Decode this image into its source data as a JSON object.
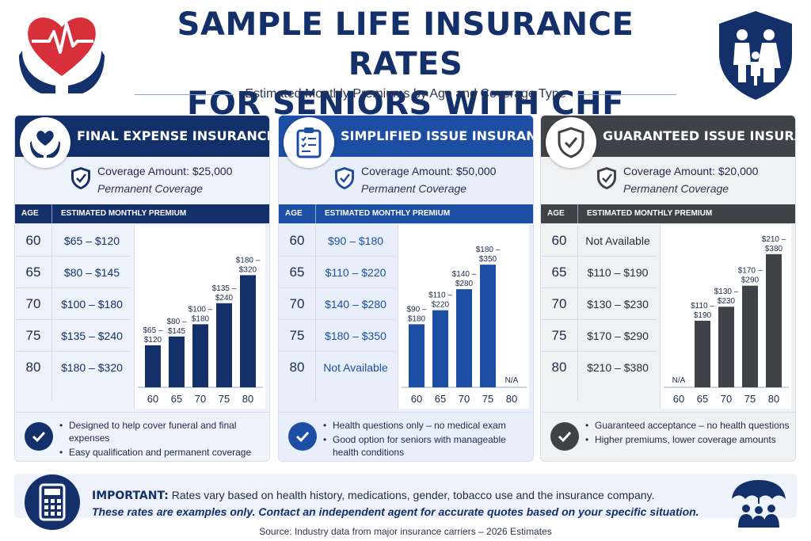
{
  "header": {
    "title_line1": "SAMPLE LIFE INSURANCE RATES",
    "title_line2": "FOR SENIORS WITH CHF",
    "subtitle": "Estimated Monthly Premiums by Age and Coverage Type",
    "left_icon": "heart-hands-icon",
    "right_icon": "family-shield-icon"
  },
  "colors": {
    "navy": "#13306b",
    "blue": "#1c4ea3",
    "gray": "#3f4246",
    "heart_red": "#d8303a"
  },
  "panels": [
    {
      "title": "FINAL EXPENSE INSURANCE",
      "icon": "heart-in-hands-icon",
      "coverage": "Coverage Amount: $25,000",
      "permanent": "Permanent Coverage",
      "col_age": "AGE",
      "col_premium": "ESTIMATED MONTHLY PREMIUM",
      "rows": [
        {
          "age": "60",
          "premium": "$65 – $120"
        },
        {
          "age": "65",
          "premium": "$80 – $145"
        },
        {
          "age": "70",
          "premium": "$100 – $180"
        },
        {
          "age": "75",
          "premium": "$135 – $240"
        },
        {
          "age": "80",
          "premium": "$180 – $320"
        }
      ],
      "bullets": [
        "Designed to help cover funeral and final expenses",
        "Easy qualification and permanent coverage"
      ]
    },
    {
      "title": "SIMPLIFIED ISSUE INSURANCE",
      "icon": "clipboard-checklist-icon",
      "coverage": "Coverage Amount: $50,000",
      "permanent": "Permanent Coverage",
      "col_age": "AGE",
      "col_premium": "ESTIMATED MONTHLY PREMIUM",
      "rows": [
        {
          "age": "60",
          "premium": "$90 – $180"
        },
        {
          "age": "65",
          "premium": "$110 – $220"
        },
        {
          "age": "70",
          "premium": "$140 – $280"
        },
        {
          "age": "75",
          "premium": "$180 – $350"
        },
        {
          "age": "80",
          "premium": "Not Available"
        }
      ],
      "bullets": [
        "Health questions only – no medical exam",
        "Good option for seniors with manageable health conditions"
      ]
    },
    {
      "title": "GUARANTEED ISSUE INSURANCE",
      "icon": "shield-check-icon",
      "coverage": "Coverage Amount: $20,000",
      "permanent": "Permanent Coverage",
      "col_age": "AGE",
      "col_premium": "ESTIMATED MONTHLY PREMIUM",
      "rows": [
        {
          "age": "60",
          "premium": "Not Available"
        },
        {
          "age": "65",
          "premium": "$110 – $190"
        },
        {
          "age": "70",
          "premium": "$130 – $230"
        },
        {
          "age": "75",
          "premium": "$170 – $290"
        },
        {
          "age": "80",
          "premium": "$210 – $380"
        }
      ],
      "bullets": [
        "Guaranteed acceptance – no health questions",
        "Higher premiums, lower coverage amounts"
      ]
    }
  ],
  "chart_data": [
    {
      "type": "bar",
      "categories": [
        "60",
        "65",
        "70",
        "75",
        "80"
      ],
      "values": [
        120,
        145,
        180,
        240,
        320
      ],
      "labels": [
        "$65 –\n$120",
        "$80 –\n$145",
        "$100 –\n$180",
        "$135 –\n$240",
        "$180 –\n$320"
      ],
      "ylim": [
        0,
        400
      ],
      "color": "#13306b"
    },
    {
      "type": "bar",
      "categories": [
        "60",
        "65",
        "70",
        "75",
        "80"
      ],
      "values": [
        180,
        220,
        280,
        350,
        null
      ],
      "labels": [
        "$90 –\n$180",
        "$110 –\n$220",
        "$140 –\n$280",
        "$180 –\n$350",
        "N/A"
      ],
      "ylim": [
        0,
        400
      ],
      "color": "#1c4ea3"
    },
    {
      "type": "bar",
      "categories": [
        "60",
        "65",
        "70",
        "75",
        "80"
      ],
      "values": [
        null,
        190,
        230,
        290,
        380
      ],
      "labels": [
        "N/A",
        "$110 –\n$190",
        "$130 –\n$230",
        "$170 –\n$290",
        "$210 –\n$380"
      ],
      "ylim": [
        0,
        400
      ],
      "color": "#3f4246"
    }
  ],
  "important": {
    "label": "IMPORTANT:",
    "text": "Rates vary based on health history, medications, gender, tobacco use and the insurance company.",
    "note": "These rates are examples only.  Contact an independent agent for accurate quotes based on your specific situation."
  },
  "source": "Source: Industry data from major insurance carriers – 2026 Estimates"
}
